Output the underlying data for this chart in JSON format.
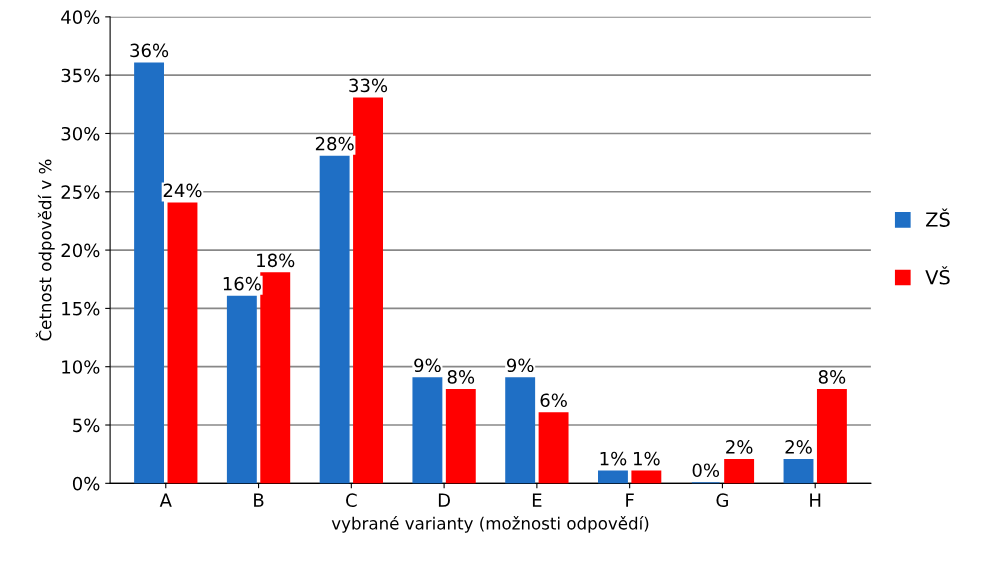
{
  "chart_data": {
    "type": "bar",
    "xlabel": "vybrané varianty (možnosti odpovědí)",
    "ylabel": "Četnost odpovědí v %",
    "categories": [
      "A",
      "B",
      "C",
      "D",
      "E",
      "F",
      "G",
      "H"
    ],
    "series": [
      {
        "name": "ZŠ",
        "color": "#1f6fc5",
        "values": [
          36,
          16,
          28,
          9,
          9,
          1,
          0,
          2
        ],
        "value_labels": [
          "36%",
          "16%",
          "28%",
          "9%",
          "9%",
          "1%",
          "0%",
          "2%"
        ]
      },
      {
        "name": "VŠ",
        "color": "#ff0000",
        "values": [
          24,
          18,
          33,
          8,
          6,
          1,
          2,
          8
        ],
        "value_labels": [
          "24%",
          "18%",
          "33%",
          "8%",
          "6%",
          "1%",
          "2%",
          "8%"
        ]
      }
    ],
    "ylim": [
      0,
      40
    ],
    "yticks": [
      {
        "value": 0,
        "label": "0%"
      },
      {
        "value": 5,
        "label": "5%"
      },
      {
        "value": 10,
        "label": "10%"
      },
      {
        "value": 15,
        "label": "15%"
      },
      {
        "value": 20,
        "label": "20%"
      },
      {
        "value": 25,
        "label": "25%"
      },
      {
        "value": 30,
        "label": "30%"
      },
      {
        "value": 35,
        "label": "35%"
      },
      {
        "value": 40,
        "label": "40%"
      }
    ],
    "grid": "y",
    "legend": "right"
  }
}
